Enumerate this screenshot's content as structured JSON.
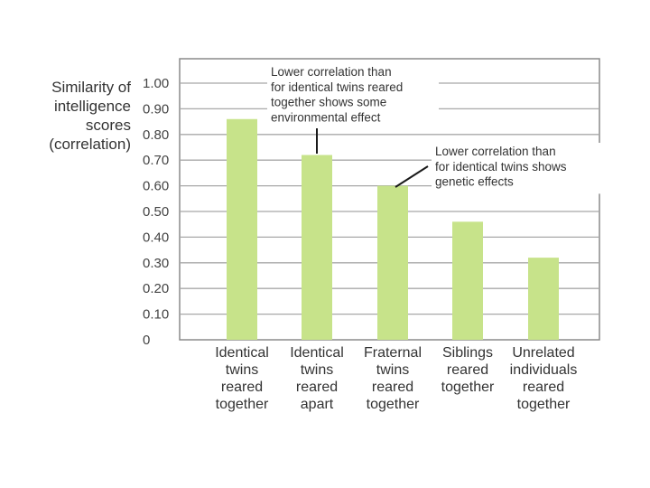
{
  "chart_data": {
    "type": "bar",
    "ylabel": [
      "Similarity of",
      "intelligence",
      "scores",
      "(correlation)"
    ],
    "ylim": [
      0,
      1.05
    ],
    "yticks": [
      "1.00",
      "0.90",
      "0.80",
      "0.70",
      "0.60",
      "0.50",
      "0.40",
      "0.30",
      "0.20",
      "0.10",
      "0"
    ],
    "ytick_values": [
      1.0,
      0.9,
      0.8,
      0.7,
      0.6,
      0.5,
      0.4,
      0.3,
      0.2,
      0.1,
      0
    ],
    "grid": true,
    "bar_color": "#c7e38a",
    "categories": [
      [
        "Identical",
        "twins",
        "reared",
        "together"
      ],
      [
        "Identical",
        "twins",
        "reared",
        "apart"
      ],
      [
        "Fraternal",
        "twins",
        "reared",
        "together"
      ],
      [
        "Siblings",
        "reared",
        "together"
      ],
      [
        "Unrelated",
        "individuals",
        "reared",
        "together"
      ]
    ],
    "values": [
      0.86,
      0.72,
      0.6,
      0.46,
      0.32
    ],
    "annotations": [
      {
        "lines": [
          "Lower correlation than",
          "for identical twins reared",
          "together shows some",
          "environmental effect"
        ],
        "points_to_bar": 1
      },
      {
        "lines": [
          "Lower correlation than",
          "for identical twins shows",
          "genetic effects"
        ],
        "points_to_bar": 2
      }
    ]
  }
}
